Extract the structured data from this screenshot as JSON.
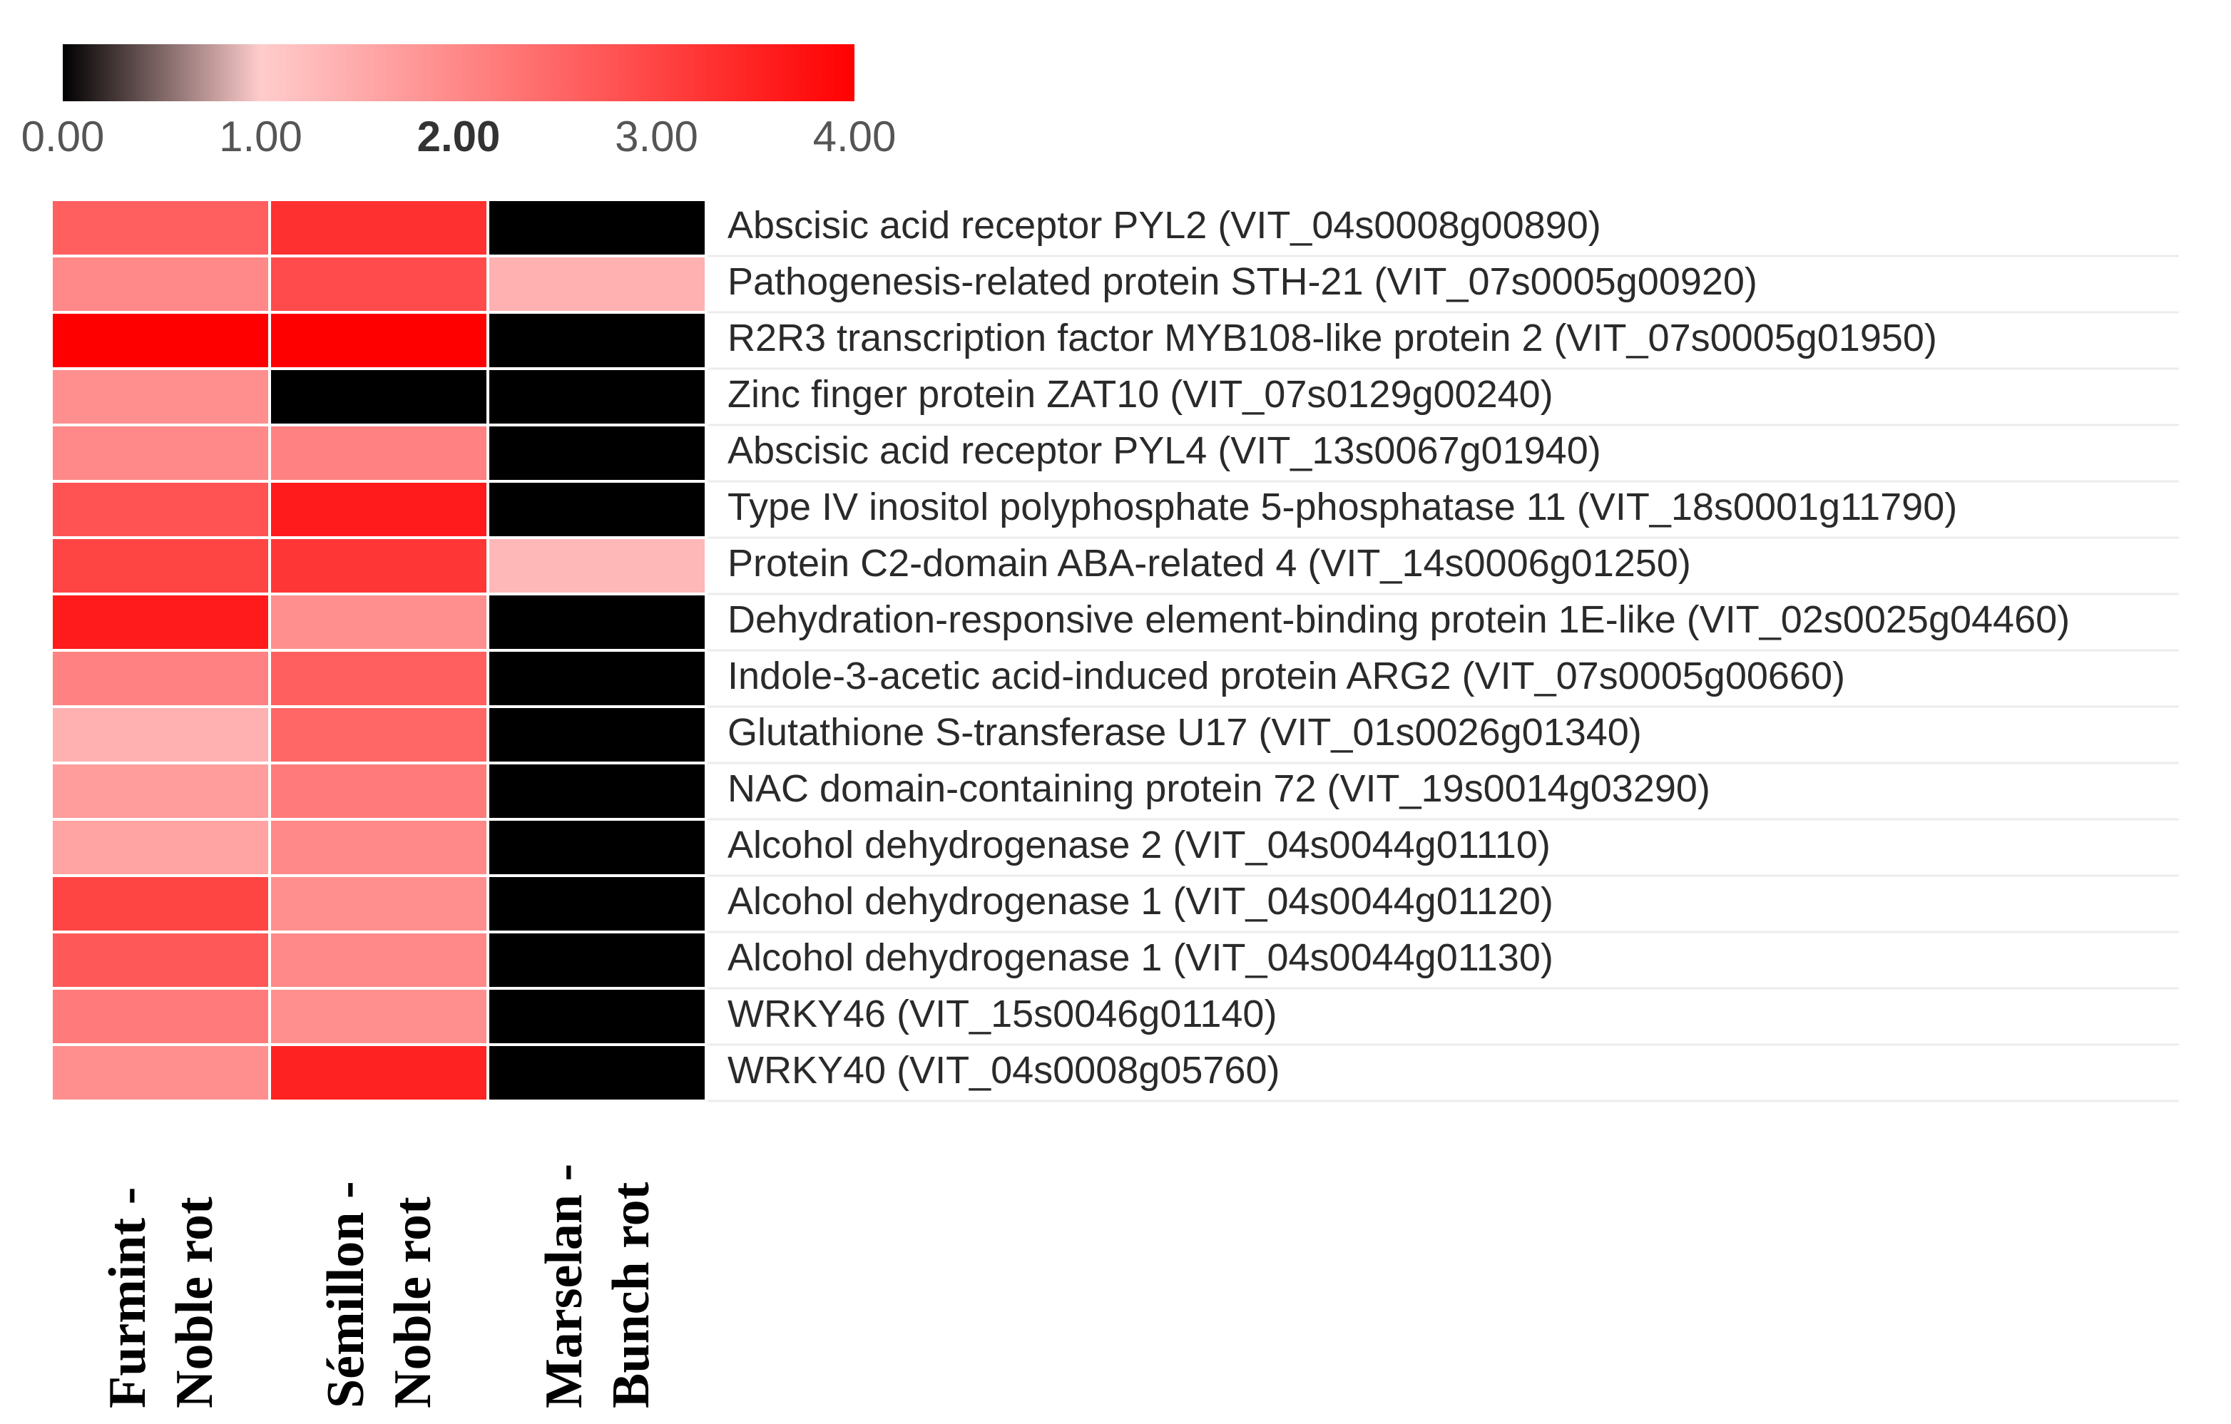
{
  "chart_data": {
    "type": "heatmap",
    "title": "",
    "color_scale": {
      "min": 0,
      "max": 4,
      "ticks": [
        "0.00",
        "1.00",
        "2.00",
        "3.00",
        "4.00"
      ],
      "emphasized_tick": "2.00",
      "stops": [
        {
          "value": 0,
          "color": "#000000"
        },
        {
          "value": 1,
          "color": "#ffcccc"
        },
        {
          "value": 4,
          "color": "#ff0000"
        }
      ]
    },
    "columns": [
      {
        "line1": "Furmint -",
        "line2": "Noble rot"
      },
      {
        "line1": "Sémillon -",
        "line2": "Noble rot"
      },
      {
        "line1": "Marselan -",
        "line2": "Bunch rot"
      }
    ],
    "rows": [
      "Abscisic acid receptor PYL2 (VIT_04s0008g00890)",
      "Pathogenesis-related protein STH-21 (VIT_07s0005g00920)",
      "R2R3 transcription factor MYB108-like protein 2 (VIT_07s0005g01950)",
      "Zinc finger protein ZAT10 (VIT_07s0129g00240)",
      "Abscisic acid receptor PYL4 (VIT_13s0067g01940)",
      "Type IV inositol polyphosphate 5-phosphatase 11 (VIT_18s0001g11790)",
      "Protein C2-domain ABA-related 4 (VIT_14s0006g01250)",
      "Dehydration-responsive element-binding protein 1E-like (VIT_02s0025g04460)",
      "Indole-3-acetic acid-induced protein ARG2 (VIT_07s0005g00660)",
      "Glutathione S-transferase U17 (VIT_01s0026g01340)",
      "NAC domain-containing protein 72 (VIT_19s0014g03290)",
      "Alcohol dehydrogenase 2 (VIT_04s0044g01110)",
      "Alcohol dehydrogenase 1 (VIT_04s0044g01120)",
      "Alcohol dehydrogenase 1 (VIT_04s0044g01130)",
      "WRKY46 (VIT_15s0046g01140)",
      "WRKY40 (VIT_04s0008g05760)"
    ],
    "values": [
      [
        2.6,
        3.3,
        0.0
      ],
      [
        2.0,
        2.9,
        1.4
      ],
      [
        4.0,
        4.0,
        0.0
      ],
      [
        1.9,
        0.0,
        0.0
      ],
      [
        2.0,
        2.1,
        0.0
      ],
      [
        2.8,
        3.6,
        0.0
      ],
      [
        3.0,
        3.2,
        1.3
      ],
      [
        3.6,
        1.9,
        0.0
      ],
      [
        2.1,
        2.6,
        0.0
      ],
      [
        1.4,
        2.5,
        0.0
      ],
      [
        1.7,
        2.2,
        0.0
      ],
      [
        1.6,
        2.0,
        0.0
      ],
      [
        3.0,
        1.9,
        0.0
      ],
      [
        2.7,
        2.0,
        0.0
      ],
      [
        2.2,
        1.9,
        0.0
      ],
      [
        1.9,
        3.5,
        0.0
      ]
    ]
  }
}
